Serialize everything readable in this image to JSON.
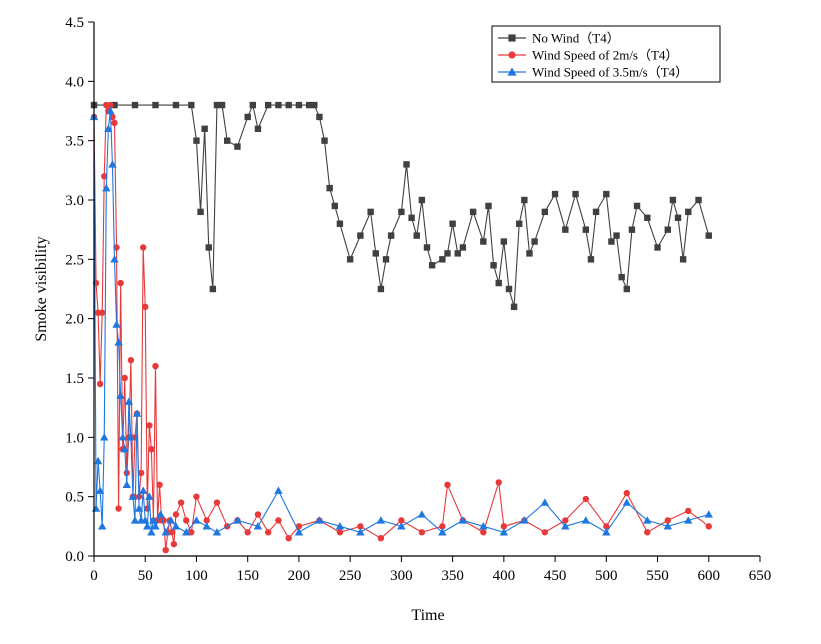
{
  "colors": {
    "no_wind": "#404040",
    "wind_2": "#e8393b",
    "wind_35": "#1f77e0",
    "axis": "#000000"
  },
  "chart_data": {
    "type": "line",
    "title": "",
    "xlabel": "Time",
    "ylabel": "Smoke visibility",
    "xlim": [
      0,
      650
    ],
    "ylim": [
      0.0,
      4.5
    ],
    "xticks": [
      "0",
      "50",
      "100",
      "150",
      "200",
      "250",
      "300",
      "350",
      "400",
      "450",
      "500",
      "550",
      "600",
      "650"
    ],
    "yticks": [
      "0.0",
      "0.5",
      "1.0",
      "1.5",
      "2.0",
      "2.5",
      "3.0",
      "3.5",
      "4.0",
      "4.5"
    ],
    "grid": false,
    "legend_position": "top-right",
    "series": [
      {
        "name": "No Wind（T4）",
        "marker": "square",
        "color": "#404040",
        "x": [
          0,
          20,
          40,
          60,
          80,
          95,
          100,
          104,
          108,
          112,
          116,
          120,
          125,
          130,
          140,
          150,
          155,
          160,
          170,
          180,
          190,
          200,
          210,
          215,
          220,
          225,
          230,
          235,
          240,
          250,
          260,
          270,
          275,
          280,
          285,
          290,
          300,
          305,
          310,
          315,
          320,
          325,
          330,
          340,
          345,
          350,
          355,
          360,
          370,
          380,
          385,
          390,
          395,
          400,
          405,
          410,
          415,
          420,
          425,
          430,
          440,
          450,
          460,
          470,
          480,
          485,
          490,
          500,
          505,
          510,
          515,
          520,
          525,
          530,
          540,
          550,
          560,
          565,
          570,
          575,
          580,
          590,
          600
        ],
        "y": [
          3.8,
          3.8,
          3.8,
          3.8,
          3.8,
          3.8,
          3.5,
          2.9,
          3.6,
          2.6,
          2.25,
          3.8,
          3.8,
          3.5,
          3.45,
          3.7,
          3.8,
          3.6,
          3.8,
          3.8,
          3.8,
          3.8,
          3.8,
          3.8,
          3.7,
          3.5,
          3.1,
          2.95,
          2.8,
          2.5,
          2.7,
          2.9,
          2.55,
          2.25,
          2.5,
          2.7,
          2.9,
          3.3,
          2.85,
          2.7,
          3.0,
          2.6,
          2.45,
          2.5,
          2.55,
          2.8,
          2.55,
          2.6,
          2.9,
          2.65,
          2.95,
          2.45,
          2.3,
          2.65,
          2.25,
          2.1,
          2.8,
          3.0,
          2.55,
          2.65,
          2.9,
          3.05,
          2.75,
          3.05,
          2.75,
          2.5,
          2.9,
          3.05,
          2.65,
          2.7,
          2.35,
          2.25,
          2.75,
          2.95,
          2.85,
          2.6,
          2.75,
          3.0,
          2.85,
          2.5,
          2.9,
          3.0,
          2.7
        ]
      },
      {
        "name": "Wind Speed of 2m/s（T4）",
        "marker": "circle",
        "color": "#e8393b",
        "x": [
          0,
          2,
          4,
          6,
          8,
          10,
          12,
          14,
          16,
          18,
          20,
          22,
          24,
          26,
          28,
          30,
          32,
          34,
          36,
          38,
          40,
          42,
          44,
          46,
          48,
          50,
          52,
          54,
          56,
          58,
          60,
          62,
          64,
          66,
          68,
          70,
          72,
          74,
          76,
          78,
          80,
          85,
          90,
          95,
          100,
          110,
          120,
          130,
          140,
          150,
          160,
          170,
          180,
          190,
          200,
          220,
          240,
          260,
          280,
          300,
          320,
          340,
          345,
          360,
          380,
          395,
          400,
          420,
          440,
          460,
          480,
          500,
          520,
          540,
          560,
          580,
          600
        ],
        "y": [
          3.7,
          2.3,
          2.05,
          1.45,
          2.05,
          3.2,
          3.8,
          3.75,
          3.8,
          3.7,
          3.65,
          2.6,
          0.4,
          2.3,
          0.9,
          1.5,
          0.7,
          1.0,
          1.65,
          0.5,
          1.0,
          1.2,
          0.5,
          0.7,
          2.6,
          2.1,
          0.4,
          1.1,
          0.9,
          0.3,
          1.6,
          0.3,
          0.6,
          0.3,
          0.3,
          0.05,
          0.2,
          0.3,
          0.2,
          0.1,
          0.35,
          0.45,
          0.3,
          0.2,
          0.5,
          0.3,
          0.45,
          0.25,
          0.3,
          0.2,
          0.35,
          0.2,
          0.3,
          0.15,
          0.25,
          0.3,
          0.2,
          0.25,
          0.15,
          0.3,
          0.2,
          0.25,
          0.6,
          0.3,
          0.2,
          0.62,
          0.25,
          0.3,
          0.2,
          0.3,
          0.48,
          0.25,
          0.53,
          0.2,
          0.3,
          0.38,
          0.25
        ]
      },
      {
        "name": "Wind Speed of 3.5m/s（T4）",
        "marker": "triangle",
        "color": "#1f77e0",
        "x": [
          0,
          2,
          4,
          6,
          8,
          10,
          12,
          14,
          16,
          18,
          20,
          22,
          24,
          26,
          28,
          30,
          32,
          34,
          36,
          38,
          40,
          42,
          44,
          46,
          48,
          50,
          52,
          54,
          56,
          58,
          60,
          65,
          70,
          75,
          80,
          90,
          100,
          110,
          120,
          140,
          160,
          180,
          200,
          220,
          240,
          260,
          280,
          300,
          320,
          340,
          360,
          380,
          400,
          420,
          440,
          460,
          480,
          500,
          520,
          540,
          560,
          580,
          600
        ],
        "y": [
          3.7,
          0.4,
          0.8,
          0.55,
          0.25,
          1.0,
          3.1,
          3.6,
          3.75,
          3.3,
          2.5,
          1.95,
          1.8,
          1.35,
          1.0,
          0.9,
          0.6,
          1.3,
          1.0,
          0.5,
          0.3,
          1.2,
          0.4,
          0.3,
          0.55,
          0.3,
          0.25,
          0.5,
          0.2,
          0.3,
          0.25,
          0.35,
          0.2,
          0.3,
          0.25,
          0.2,
          0.3,
          0.25,
          0.2,
          0.3,
          0.25,
          0.55,
          0.2,
          0.3,
          0.25,
          0.2,
          0.3,
          0.25,
          0.35,
          0.2,
          0.3,
          0.25,
          0.2,
          0.3,
          0.45,
          0.25,
          0.3,
          0.2,
          0.45,
          0.3,
          0.25,
          0.3,
          0.35
        ]
      }
    ]
  }
}
